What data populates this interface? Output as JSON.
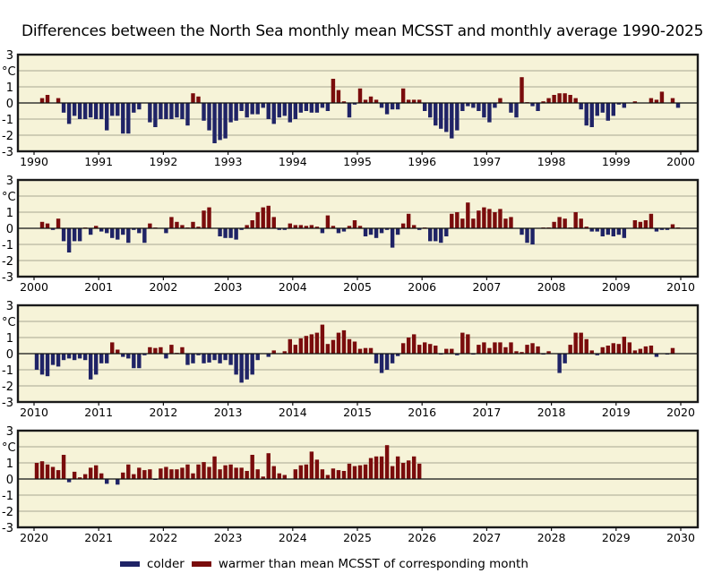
{
  "title": "Differences between the North Sea monthly mean MCSST and monthly average 1990-2025",
  "legend": {
    "colder_label": "colder",
    "warmer_label": "warmer than mean MCSST of corresponding month",
    "colder_color": "#1f2366",
    "warmer_color": "#7a0c0c"
  },
  "colors": {
    "plot_background": "#f6f3d8",
    "gridline": "#b8b6a0",
    "frame": "#1a1a1a"
  },
  "chart_data": [
    {
      "type": "bar",
      "title": "Differences between the North Sea monthly mean MCSST and monthly average 1990-2025",
      "ylabel": "°C",
      "ylim": [
        -3,
        3
      ],
      "yticks": [
        "3",
        "°C",
        "1",
        "0",
        "-1",
        "-2",
        "-3"
      ],
      "xlim": [
        1990,
        2000
      ],
      "xticks": [
        "1990",
        "1991",
        "1992",
        "1993",
        "1994",
        "1995",
        "1996",
        "1997",
        "1998",
        "1999",
        "2000"
      ],
      "grid": true,
      "start_year": 1990,
      "values": [
        null,
        0.3,
        0.5,
        null,
        0.3,
        -0.6,
        -1.3,
        -0.8,
        -1.0,
        -1.0,
        -0.9,
        -1.0,
        -1.0,
        -1.7,
        -0.8,
        -0.8,
        -1.9,
        -1.9,
        -0.6,
        -0.4,
        null,
        -1.2,
        -1.5,
        -1.0,
        -1.0,
        -1.0,
        -0.9,
        -1.0,
        -1.4,
        0.6,
        0.4,
        -1.1,
        -1.7,
        -2.5,
        -2.3,
        -2.2,
        -1.2,
        -1.1,
        -0.5,
        -0.9,
        -0.7,
        -0.7,
        -0.3,
        -1.0,
        -1.3,
        -0.9,
        -0.8,
        -1.2,
        -1.0,
        -0.6,
        -0.5,
        -0.6,
        -0.6,
        -0.3,
        -0.5,
        1.5,
        0.8,
        0.1,
        -0.9,
        -0.1,
        0.9,
        0.2,
        0.4,
        0.2,
        -0.3,
        -0.7,
        -0.4,
        -0.4,
        0.9,
        0.2,
        0.2,
        0.2,
        -0.5,
        -0.9,
        -1.4,
        -1.6,
        -1.8,
        -2.2,
        -1.7,
        -0.5,
        -0.2,
        -0.3,
        -0.5,
        -0.9,
        -1.2,
        -0.3,
        0.3,
        null,
        -0.6,
        -0.9,
        1.6,
        0.05,
        -0.2,
        -0.5,
        0.1,
        0.3,
        0.5,
        0.6,
        0.6,
        0.5,
        0.3,
        -0.4,
        -1.4,
        -1.5,
        -0.8,
        -0.6,
        -1.1,
        -0.8,
        -0.1,
        -0.3,
        null,
        0.1,
        null,
        null,
        0.3,
        0.2,
        0.7,
        null,
        0.3,
        -0.3
      ]
    },
    {
      "type": "bar",
      "ylabel": "°C",
      "ylim": [
        -3,
        3
      ],
      "yticks": [
        "3",
        "°C",
        "1",
        "0",
        "-1",
        "-2",
        "-3"
      ],
      "xlim": [
        2000,
        2010
      ],
      "xticks": [
        "2000",
        "2001",
        "2002",
        "2003",
        "2004",
        "2005",
        "2006",
        "2007",
        "2008",
        "2009",
        "2010"
      ],
      "grid": true,
      "start_year": 2000,
      "values": [
        null,
        0.4,
        0.3,
        -0.1,
        0.6,
        -0.8,
        -1.5,
        -0.8,
        -0.8,
        0.05,
        -0.4,
        0.15,
        -0.2,
        -0.3,
        -0.6,
        -0.7,
        -0.4,
        -0.9,
        -0.1,
        -0.3,
        -0.9,
        0.3,
        0.05,
        null,
        -0.3,
        0.7,
        0.4,
        0.2,
        0.05,
        0.4,
        0.1,
        1.1,
        1.3,
        null,
        -0.5,
        -0.6,
        -0.6,
        -0.7,
        -0.1,
        0.2,
        0.5,
        1.0,
        1.3,
        1.4,
        0.7,
        -0.1,
        -0.1,
        0.3,
        0.2,
        0.2,
        0.15,
        0.2,
        0.1,
        -0.3,
        0.8,
        0.15,
        -0.3,
        -0.2,
        0.15,
        0.5,
        0.15,
        -0.5,
        -0.4,
        -0.6,
        -0.3,
        -0.1,
        -1.2,
        -0.4,
        0.3,
        0.9,
        0.2,
        -0.1,
        0.05,
        -0.8,
        -0.8,
        -0.9,
        -0.5,
        0.9,
        1.0,
        0.6,
        1.6,
        0.6,
        1.1,
        1.3,
        1.2,
        1.0,
        1.2,
        0.6,
        0.7,
        null,
        -0.4,
        -0.9,
        -1.0,
        null,
        0.05,
        0.05,
        0.4,
        0.7,
        0.6,
        0.05,
        1.0,
        0.6,
        0.1,
        -0.2,
        -0.2,
        -0.5,
        -0.4,
        -0.5,
        -0.4,
        -0.6,
        null,
        0.5,
        0.4,
        0.5,
        0.9,
        -0.2,
        -0.1,
        -0.1,
        0.25,
        0.05
      ]
    },
    {
      "type": "bar",
      "ylabel": "°C",
      "ylim": [
        -3,
        3
      ],
      "yticks": [
        "3",
        "°C",
        "1",
        "0",
        "-1",
        "-2",
        "-3"
      ],
      "xlim": [
        2010,
        2020
      ],
      "xticks": [
        "2010",
        "2011",
        "2012",
        "2013",
        "2014",
        "2015",
        "2016",
        "2017",
        "2018",
        "2019",
        "2020"
      ],
      "grid": true,
      "start_year": 2010,
      "values": [
        -1.0,
        -1.3,
        -1.4,
        -0.7,
        -0.8,
        -0.4,
        -0.3,
        -0.4,
        -0.3,
        -0.4,
        -1.6,
        -1.3,
        -0.6,
        -0.6,
        0.7,
        0.25,
        -0.2,
        -0.3,
        -0.9,
        -0.9,
        -0.1,
        0.4,
        0.35,
        0.4,
        -0.3,
        0.55,
        0.05,
        0.4,
        -0.7,
        -0.6,
        -0.1,
        -0.6,
        -0.55,
        -0.4,
        -0.6,
        -0.4,
        -0.7,
        -1.3,
        -1.8,
        -1.6,
        -1.3,
        -0.4,
        null,
        -0.2,
        0.2,
        null,
        0.15,
        0.9,
        0.55,
        0.95,
        1.1,
        1.2,
        1.3,
        1.8,
        0.6,
        0.85,
        1.3,
        1.45,
        0.9,
        0.75,
        0.3,
        0.35,
        0.35,
        -0.6,
        -1.2,
        -1.0,
        -0.6,
        -0.15,
        0.65,
        1.0,
        1.2,
        0.55,
        0.7,
        0.6,
        0.5,
        -0.05,
        0.3,
        0.3,
        -0.1,
        1.3,
        1.2,
        -0.05,
        0.55,
        0.7,
        0.35,
        0.7,
        0.7,
        0.4,
        0.7,
        0.15,
        0.1,
        0.55,
        0.65,
        0.45,
        -0.05,
        0.15,
        null,
        -1.2,
        -0.6,
        0.55,
        1.3,
        1.3,
        0.9,
        0.2,
        -0.1,
        0.4,
        0.5,
        0.65,
        0.6,
        1.05,
        0.7,
        0.2,
        0.3,
        0.45,
        0.5,
        -0.2,
        null,
        -0.05,
        0.35,
        null
      ]
    },
    {
      "type": "bar",
      "ylabel": "°C",
      "ylim": [
        -3,
        3
      ],
      "yticks": [
        "3",
        "°C",
        "1",
        "0",
        "-1",
        "-2",
        "-3"
      ],
      "xlim": [
        2020,
        2030
      ],
      "xticks": [
        "2020",
        "2021",
        "2022",
        "2023",
        "2024",
        "2025",
        "2026",
        "2027",
        "2028",
        "2029",
        "2030"
      ],
      "grid": true,
      "start_year": 2020,
      "values": [
        1.0,
        1.1,
        0.9,
        0.75,
        0.55,
        1.5,
        -0.2,
        0.45,
        0.1,
        0.3,
        0.7,
        0.85,
        0.35,
        -0.3,
        null,
        -0.35,
        0.4,
        0.9,
        0.3,
        0.7,
        0.55,
        0.6,
        -0.05,
        0.65,
        0.75,
        0.6,
        0.6,
        0.7,
        0.9,
        0.35,
        0.9,
        1.05,
        0.75,
        1.4,
        0.6,
        0.85,
        0.9,
        0.7,
        0.7,
        0.5,
        1.5,
        0.6,
        0.15,
        1.6,
        0.8,
        0.35,
        0.25,
        null,
        0.6,
        0.85,
        0.9,
        1.7,
        1.2,
        0.6,
        0.25,
        0.65,
        0.55,
        0.5,
        0.95,
        0.8,
        0.85,
        0.9,
        1.3,
        1.4,
        1.4,
        2.1,
        0.8,
        1.4,
        1.0,
        1.15,
        1.4,
        0.95,
        null,
        null,
        null,
        null,
        null,
        null,
        null,
        null,
        null,
        null,
        null,
        null,
        null,
        null,
        null,
        null,
        null,
        null,
        null,
        null,
        null,
        null,
        null,
        null,
        null,
        null,
        null,
        null,
        null,
        null,
        null,
        null,
        null,
        null,
        null,
        null,
        null,
        null,
        null,
        null,
        null,
        null,
        null,
        null,
        null,
        null,
        null,
        null
      ]
    }
  ]
}
